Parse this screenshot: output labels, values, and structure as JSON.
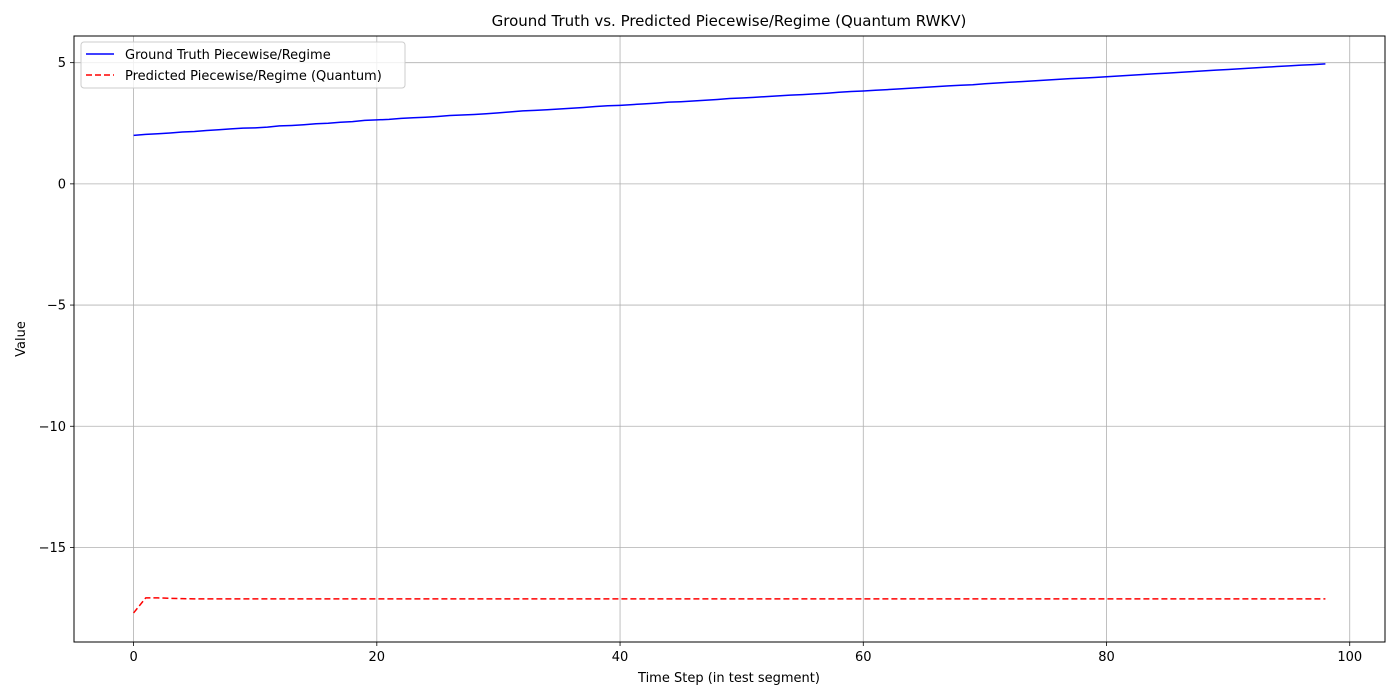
{
  "chart_data": {
    "type": "line",
    "title": "Ground Truth vs. Predicted Piecewise/Regime (Quantum RWKV)",
    "xlabel": "Time Step (in test segment)",
    "ylabel": "Value",
    "xlim": [
      -4.9,
      102.9
    ],
    "ylim": [
      -18.9,
      6.1
    ],
    "xticks": [
      0,
      20,
      40,
      60,
      80,
      100
    ],
    "xtick_labels": [
      "0",
      "20",
      "40",
      "60",
      "80",
      "100"
    ],
    "yticks": [
      5,
      0,
      -5,
      -10,
      -15
    ],
    "ytick_labels": [
      "5",
      "0",
      "−5",
      "−10",
      "−15"
    ],
    "grid": true,
    "legend_position": "top-left",
    "series": [
      {
        "name": "Ground Truth Piecewise/Regime",
        "color": "#0000ff",
        "style": "solid",
        "x_start": 0,
        "x_step": 1,
        "values": [
          2.0,
          2.04,
          2.07,
          2.1,
          2.14,
          2.16,
          2.2,
          2.23,
          2.27,
          2.3,
          2.31,
          2.34,
          2.39,
          2.41,
          2.44,
          2.48,
          2.5,
          2.54,
          2.57,
          2.62,
          2.64,
          2.66,
          2.7,
          2.73,
          2.75,
          2.78,
          2.82,
          2.84,
          2.86,
          2.89,
          2.93,
          2.97,
          3.01,
          3.03,
          3.06,
          3.09,
          3.12,
          3.15,
          3.19,
          3.22,
          3.24,
          3.27,
          3.3,
          3.33,
          3.37,
          3.39,
          3.42,
          3.45,
          3.48,
          3.52,
          3.54,
          3.57,
          3.6,
          3.63,
          3.66,
          3.68,
          3.71,
          3.74,
          3.78,
          3.81,
          3.83,
          3.86,
          3.89,
          3.92,
          3.95,
          3.98,
          4.01,
          4.04,
          4.07,
          4.09,
          4.13,
          4.16,
          4.19,
          4.22,
          4.25,
          4.28,
          4.31,
          4.34,
          4.36,
          4.39,
          4.42,
          4.45,
          4.48,
          4.51,
          4.54,
          4.57,
          4.6,
          4.63,
          4.66,
          4.69,
          4.72,
          4.75,
          4.78,
          4.81,
          4.84,
          4.87,
          4.9,
          4.92,
          4.95
        ]
      },
      {
        "name": "Predicted Piecewise/Regime (Quantum)",
        "color": "#ff0000",
        "style": "dashed",
        "x_start": 0,
        "x_step": 1,
        "values": [
          -17.7,
          -17.08,
          -17.08,
          -17.1,
          -17.11,
          -17.12,
          -17.12,
          -17.12,
          -17.12,
          -17.12,
          -17.12,
          -17.12,
          -17.12,
          -17.12,
          -17.12,
          -17.12,
          -17.12,
          -17.12,
          -17.12,
          -17.12,
          -17.12,
          -17.12,
          -17.12,
          -17.12,
          -17.12,
          -17.12,
          -17.12,
          -17.12,
          -17.12,
          -17.12,
          -17.12,
          -17.12,
          -17.12,
          -17.12,
          -17.12,
          -17.12,
          -17.12,
          -17.12,
          -17.12,
          -17.12,
          -17.12,
          -17.12,
          -17.12,
          -17.12,
          -17.12,
          -17.12,
          -17.12,
          -17.12,
          -17.12,
          -17.12,
          -17.12,
          -17.12,
          -17.12,
          -17.12,
          -17.12,
          -17.12,
          -17.12,
          -17.12,
          -17.12,
          -17.12,
          -17.12,
          -17.12,
          -17.12,
          -17.12,
          -17.12,
          -17.12,
          -17.12,
          -17.12,
          -17.12,
          -17.12,
          -17.12,
          -17.12,
          -17.12,
          -17.12,
          -17.12,
          -17.12,
          -17.12,
          -17.12,
          -17.12,
          -17.12,
          -17.12,
          -17.12,
          -17.12,
          -17.12,
          -17.12,
          -17.12,
          -17.12,
          -17.12,
          -17.12,
          -17.12,
          -17.12,
          -17.12,
          -17.12,
          -17.12,
          -17.12,
          -17.12,
          -17.12,
          -17.12,
          -17.12
        ]
      }
    ]
  }
}
